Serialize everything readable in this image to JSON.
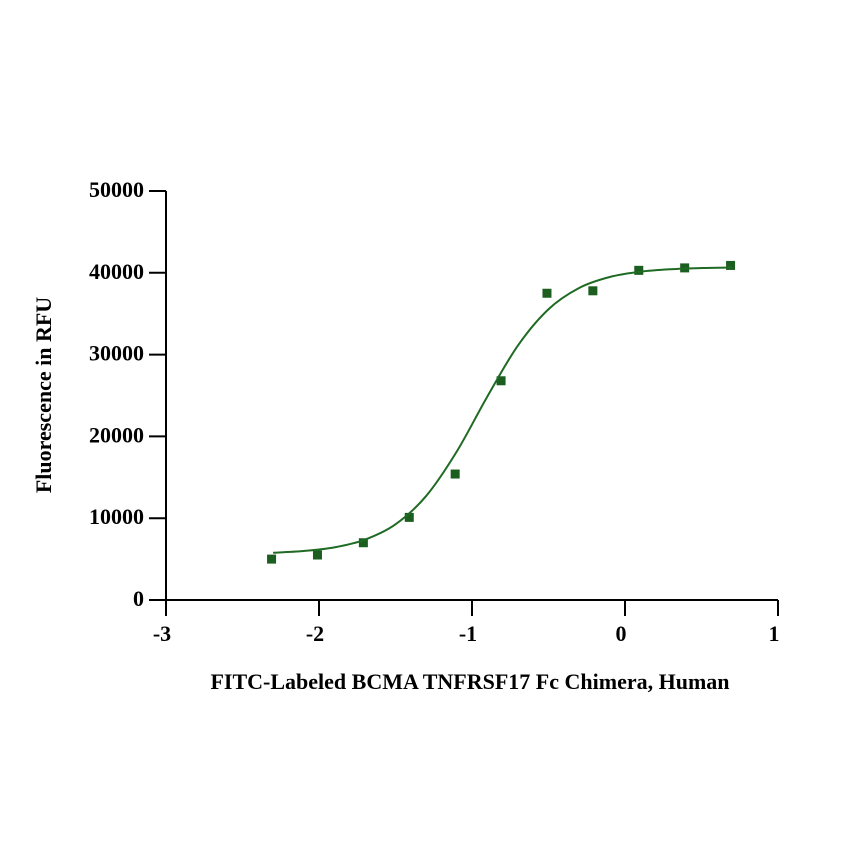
{
  "chart_data": {
    "type": "scatter",
    "xlabel": "FITC-Labeled BCMA TNFRSF17 Fc Chimera, Human",
    "ylabel": "Fluorescence in RFU",
    "xlim": [
      -3,
      1
    ],
    "xticks": [
      -3,
      -2,
      -1,
      0,
      1
    ],
    "ylim": [
      0,
      50000
    ],
    "yticks": [
      0,
      10000,
      20000,
      30000,
      40000,
      50000
    ],
    "series": [
      {
        "color": "#1b5e20",
        "marker": "square",
        "x": [
          -2.31,
          -2.01,
          -1.71,
          -1.41,
          -1.11,
          -0.81,
          -0.51,
          -0.21,
          0.09,
          0.39,
          0.69
        ],
        "values": [
          5000,
          5500,
          7000,
          10100,
          15400,
          26800,
          37500,
          37800,
          40300,
          40600,
          40900
        ]
      },
      {
        "color": "#1f6b24",
        "marker": "line",
        "x": [
          -2.3,
          -2.1,
          -1.9,
          -1.7,
          -1.5,
          -1.3,
          -1.1,
          -0.9,
          -0.7,
          -0.5,
          -0.3,
          -0.1,
          0.1,
          0.3,
          0.5,
          0.7
        ],
        "values": [
          5780,
          5990,
          6435,
          7373,
          9252,
          12706,
          18136,
          24864,
          31109,
          35549,
          38145,
          39484,
          40134,
          40439,
          40580,
          40645
        ]
      }
    ]
  }
}
